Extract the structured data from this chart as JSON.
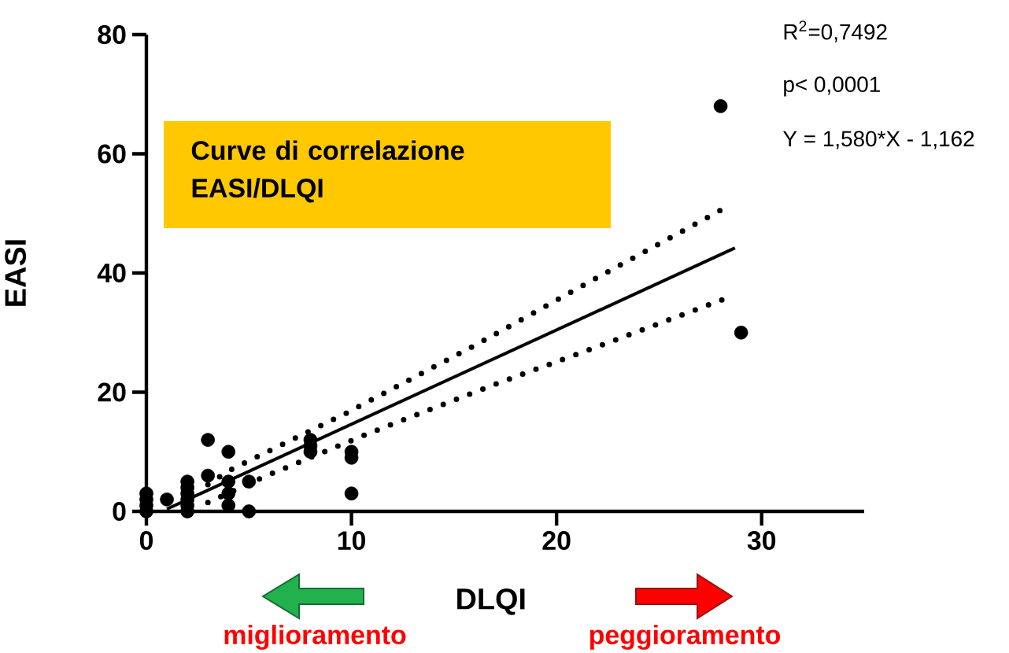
{
  "chart_data": {
    "type": "scatter",
    "title": "Curve di correlazione EASI/DLQI",
    "xlabel": "DLQI",
    "ylabel": "EASI",
    "xlim": [
      0,
      35
    ],
    "xticks": [
      0,
      10,
      20,
      30
    ],
    "ylim": [
      0,
      80
    ],
    "yticks": [
      0,
      20,
      40,
      60,
      80
    ],
    "series": [
      {
        "marker": "circle",
        "color": "#000000",
        "x": [
          0,
          0,
          0,
          0,
          1,
          2,
          2,
          2,
          2,
          2,
          2,
          3,
          3,
          4,
          4,
          4,
          4,
          5,
          5,
          8,
          8,
          8,
          10,
          10,
          10,
          28,
          29
        ],
        "values": [
          0,
          1,
          2,
          3,
          2,
          5,
          4,
          3,
          2,
          1,
          0,
          12,
          6,
          10,
          5,
          3,
          1,
          5,
          0,
          12,
          11,
          10,
          10,
          9,
          3,
          68,
          30
        ]
      },
      {
        "type": "line",
        "marker": "none",
        "color": "#000000",
        "line_style": "solid",
        "x": [
          1,
          28.7
        ],
        "values": [
          0.4,
          44.2
        ]
      },
      {
        "type": "line",
        "marker": "none",
        "color": "#000000",
        "line_style": "dotted",
        "x": [
          3,
          4,
          9.7,
          16.2,
          22.6,
          28.2
        ],
        "values": [
          4.5,
          6.8,
          16.4,
          28.2,
          40.4,
          50.9
        ]
      },
      {
        "type": "line",
        "marker": "none",
        "color": "#000000",
        "line_style": "dotted",
        "x": [
          3,
          5.8,
          10.7,
          16.6,
          22.5,
          28.3
        ],
        "values": [
          1.5,
          5.9,
          12.9,
          20.8,
          28.3,
          35.8
        ]
      }
    ],
    "annotations": [
      "R$^{2}$=0,7492",
      "p< 0,0001",
      "Y = 1,580*X - 1,162",
      "miglioramento",
      "peggioramento"
    ]
  }
}
